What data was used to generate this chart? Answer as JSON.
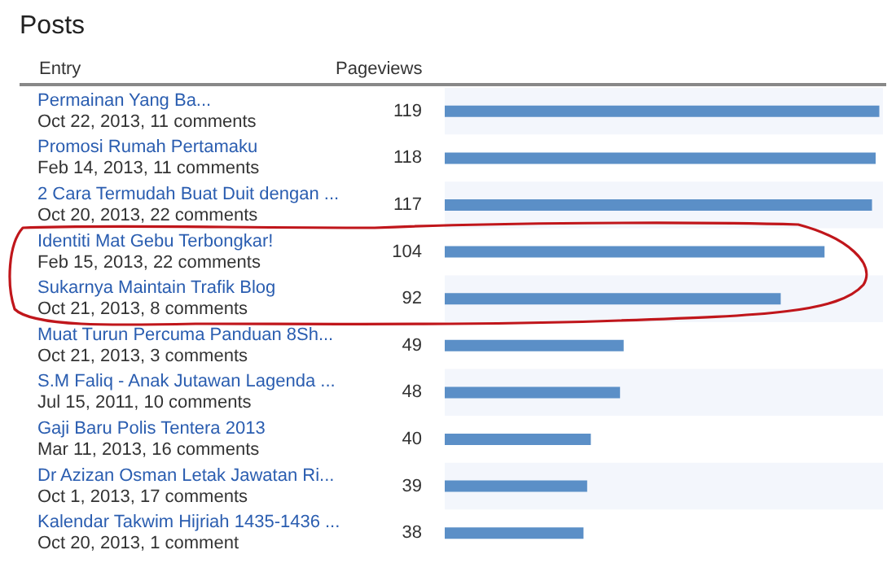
{
  "chart_data": {
    "type": "bar",
    "orientation": "horizontal",
    "title": "Posts",
    "ylabel": "Entry",
    "xlabel": "Pageviews",
    "color": "#5b8fc7",
    "data_labels": true,
    "grid": false,
    "categories": [
      "Permainan Yang Ba...\nOct 22, 2013, 11 comments",
      "Promosi Rumah Pertamaku\nFeb 14, 2013, 11 comments",
      "2 Cara Termudah Buat Duit dengan ...\nOct 20, 2013, 22 comments",
      "Identiti Mat Gebu Terbongkar!\nFeb 15, 2013, 22 comments",
      "Sukarnya Maintain Trafik Blog\nOct 21, 2013, 8 comments",
      "Muat Turun Percuma Panduan 8Sh...\nOct 21, 2013, 3 comments",
      "S.M Faliq - Anak Jutawan Lagenda ...\nJul 15, 2011, 10 comments",
      "Gaji Baru Polis Tentera 2013\nMar 11, 2013, 16 comments",
      "Dr Azizan Osman Letak Jawatan Ri...\nOct 1, 2013, 17 comments",
      "Kalendar Takwim Hijriah 1435-1436 ...\nOct 20, 2013, 1 comment"
    ],
    "values": [
      119,
      118,
      117,
      104,
      92,
      49,
      48,
      40,
      39,
      38
    ]
  }
}
